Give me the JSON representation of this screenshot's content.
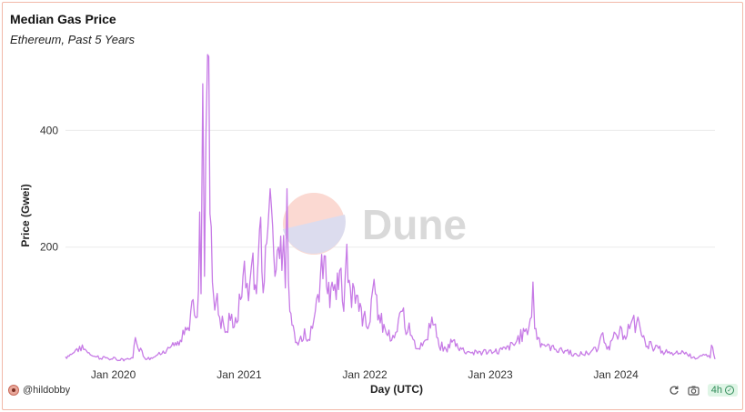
{
  "header": {
    "title": "Median Gas Price",
    "subtitle": "Ethereum, Past 5 Years"
  },
  "watermark": {
    "text": "Dune"
  },
  "footer": {
    "user": "@hildobby",
    "refresh": "4h"
  },
  "colors": {
    "line": "#c77be6",
    "grid": "#ececec",
    "axis_text": "#333333",
    "watermark_text": "#d9d9d9"
  },
  "chart_data": {
    "type": "line",
    "title": "Median Gas Price",
    "subtitle": "Ethereum, Past 5 Years",
    "xlabel": "Day (UTC)",
    "ylabel": "Price (Gwei)",
    "xlim": [
      "2019-08-15",
      "2024-10-15"
    ],
    "ylim": [
      0,
      530
    ],
    "y_ticks": [
      200,
      400
    ],
    "x_ticks": [
      {
        "date": "2020-01-01",
        "label": "Jan 2020"
      },
      {
        "date": "2021-01-01",
        "label": "Jan 2021"
      },
      {
        "date": "2022-01-01",
        "label": "Jan 2022"
      },
      {
        "date": "2023-01-01",
        "label": "Jan 2023"
      },
      {
        "date": "2024-01-01",
        "label": "Jan 2024"
      }
    ],
    "grid": true,
    "legend": "none",
    "series": [
      {
        "x": [
          "2019-08-15",
          "2019-09-05",
          "2019-09-25",
          "2019-10-15",
          "2019-11-10",
          "2019-12-10",
          "2020-01-10",
          "2020-02-15",
          "2020-02-27",
          "2020-03-05",
          "2020-04-01",
          "2020-05-01",
          "2020-05-25",
          "2020-06-15",
          "2020-07-10",
          "2020-07-25",
          "2020-08-05",
          "2020-08-13",
          "2020-08-20",
          "2020-09-01",
          "2020-09-08",
          "2020-09-12",
          "2020-09-17",
          "2020-09-22",
          "2020-10-01",
          "2020-10-15",
          "2020-11-05",
          "2020-11-25",
          "2020-12-10",
          "2020-12-25",
          "2021-01-05",
          "2021-01-12",
          "2021-01-20",
          "2021-02-01",
          "2021-02-10",
          "2021-02-20",
          "2021-03-01",
          "2021-03-15",
          "2021-04-01",
          "2021-04-15",
          "2021-04-25",
          "2021-05-05",
          "2021-05-10",
          "2021-05-15",
          "2021-05-20",
          "2021-05-28",
          "2021-06-10",
          "2021-06-25",
          "2021-07-10",
          "2021-07-25",
          "2021-08-10",
          "2021-08-25",
          "2021-09-05",
          "2021-09-15",
          "2021-09-28",
          "2021-10-10",
          "2021-10-20",
          "2021-11-01",
          "2021-11-10",
          "2021-11-20",
          "2021-12-01",
          "2021-12-15",
          "2022-01-01",
          "2022-01-10",
          "2022-01-20",
          "2022-02-01",
          "2022-02-15",
          "2022-03-01",
          "2022-03-20",
          "2022-04-05",
          "2022-04-20",
          "2022-05-01",
          "2022-05-10",
          "2022-05-25",
          "2022-06-10",
          "2022-06-25",
          "2022-07-15",
          "2022-08-05",
          "2022-08-25",
          "2022-09-15",
          "2022-10-10",
          "2022-11-10",
          "2022-12-10",
          "2023-01-10",
          "2023-02-15",
          "2023-03-15",
          "2023-04-15",
          "2023-05-01",
          "2023-05-05",
          "2023-05-10",
          "2023-05-20",
          "2023-06-10",
          "2023-07-10",
          "2023-08-10",
          "2023-09-10",
          "2023-10-10",
          "2023-11-10",
          "2023-11-20",
          "2023-12-10",
          "2023-12-20",
          "2024-01-10",
          "2024-02-10",
          "2024-03-01",
          "2024-03-05",
          "2024-03-12",
          "2024-03-25",
          "2024-04-15",
          "2024-05-15",
          "2024-06-15",
          "2024-07-15",
          "2024-08-15",
          "2024-09-15",
          "2024-10-01",
          "2024-10-05",
          "2024-10-15"
        ],
        "y": [
          12,
          18,
          30,
          22,
          12,
          10,
          7,
          8,
          10,
          45,
          10,
          12,
          22,
          28,
          32,
          50,
          62,
          90,
          110,
          80,
          260,
          120,
          480,
          150,
          530,
          140,
          80,
          55,
          85,
          70,
          110,
          150,
          130,
          140,
          190,
          120,
          230,
          140,
          300,
          150,
          200,
          160,
          220,
          130,
          300,
          90,
          55,
          40,
          60,
          40,
          90,
          150,
          185,
          120,
          140,
          110,
          160,
          90,
          205,
          130,
          130,
          90,
          90,
          60,
          110,
          120,
          70,
          60,
          40,
          55,
          90,
          50,
          70,
          40,
          25,
          40,
          80,
          30,
          25,
          40,
          25,
          20,
          20,
          20,
          25,
          35,
          60,
          80,
          140,
          60,
          45,
          30,
          25,
          22,
          15,
          18,
          25,
          50,
          30,
          40,
          50,
          60,
          70,
          80,
          60,
          40,
          30,
          22,
          15,
          20,
          12,
          15,
          10,
          32,
          8
        ]
      }
    ]
  }
}
